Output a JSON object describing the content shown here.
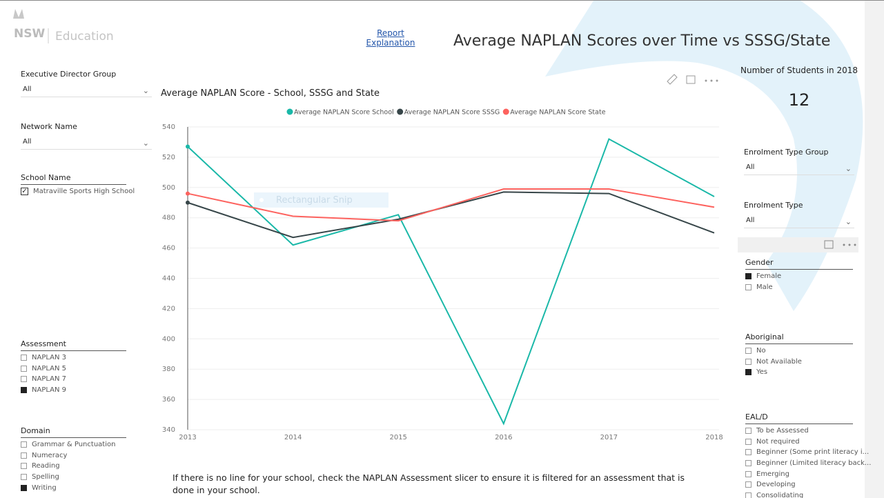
{
  "header": {
    "logo_text": "NSW",
    "logo_sub": "Education",
    "link": "Report Explanation",
    "title": "Average NAPLAN Scores over Time vs SSSG/State"
  },
  "left_slicers": [
    {
      "label": "Executive Director Group",
      "kind": "dropdown",
      "value": "All"
    },
    {
      "label": "Network Name",
      "kind": "dropdown",
      "value": "All"
    },
    {
      "label": "School Name",
      "kind": "checklist",
      "items": [
        {
          "text": "Matraville Sports High School",
          "selected": true
        }
      ]
    },
    {
      "label": "Assessment",
      "kind": "list",
      "items": [
        {
          "text": "NAPLAN 3",
          "selected": false
        },
        {
          "text": "NAPLAN 5",
          "selected": false
        },
        {
          "text": "NAPLAN 7",
          "selected": false
        },
        {
          "text": "NAPLAN 9",
          "selected": true
        }
      ]
    },
    {
      "label": "Domain",
      "kind": "list",
      "items": [
        {
          "text": "Grammar & Punctuation",
          "selected": false
        },
        {
          "text": "Numeracy",
          "selected": false
        },
        {
          "text": "Reading",
          "selected": false
        },
        {
          "text": "Spelling",
          "selected": false
        },
        {
          "text": "Writing",
          "selected": true
        }
      ]
    }
  ],
  "kpi": {
    "label": "Number of Students in 2018",
    "value": "12"
  },
  "right_slicers": [
    {
      "label": "Enrolment Type Group",
      "kind": "dropdown",
      "value": "All"
    },
    {
      "label": "Enrolment Type",
      "kind": "dropdown",
      "value": "All"
    },
    {
      "label": "Gender",
      "kind": "list",
      "items": [
        {
          "text": "Female",
          "selected": true
        },
        {
          "text": "Male",
          "selected": false
        }
      ]
    },
    {
      "label": "Aboriginal",
      "kind": "list",
      "items": [
        {
          "text": "No",
          "selected": false
        },
        {
          "text": "Not Available",
          "selected": false
        },
        {
          "text": "Yes",
          "selected": true
        }
      ]
    },
    {
      "label": "EAL/D",
      "kind": "list",
      "items": [
        {
          "text": "To be Assessed",
          "selected": false
        },
        {
          "text": "Not required",
          "selected": false
        },
        {
          "text": "Beginner (Some print literacy i...",
          "selected": false
        },
        {
          "text": "Beginner (Limited literacy back...",
          "selected": false
        },
        {
          "text": "Emerging",
          "selected": false
        },
        {
          "text": "Developing",
          "selected": false
        },
        {
          "text": "Consolidating",
          "selected": false
        }
      ]
    }
  ],
  "overlay_text": "Rectangular Snip",
  "note": "If there is no line for your school, check the NAPLAN Assessment slicer to ensure it is filtered for an assessment that is done in your school.",
  "chart_data": {
    "type": "line",
    "title": "Average NAPLAN Score - School, SSSG and State",
    "x": [
      2013,
      2014,
      2015,
      2016,
      2017,
      2018
    ],
    "xlim": [
      2013,
      2018
    ],
    "xticks": [
      2013,
      2014,
      2015,
      2016,
      2017,
      2018
    ],
    "ylim": [
      340,
      540
    ],
    "yticks": [
      340,
      360,
      380,
      400,
      420,
      440,
      460,
      480,
      500,
      520,
      540
    ],
    "grid": true,
    "series": [
      {
        "name": "Average NAPLAN Score School",
        "color": "#1ab8a8",
        "values": [
          527,
          462,
          482,
          344,
          532,
          494
        ]
      },
      {
        "name": "Average NAPLAN Score SSSG",
        "color": "#374649",
        "values": [
          490,
          467,
          479,
          497,
          496,
          470
        ]
      },
      {
        "name": "Average NAPLAN Score State",
        "color": "#fd625e",
        "values": [
          496,
          481,
          478,
          499,
          499,
          487
        ]
      }
    ]
  }
}
